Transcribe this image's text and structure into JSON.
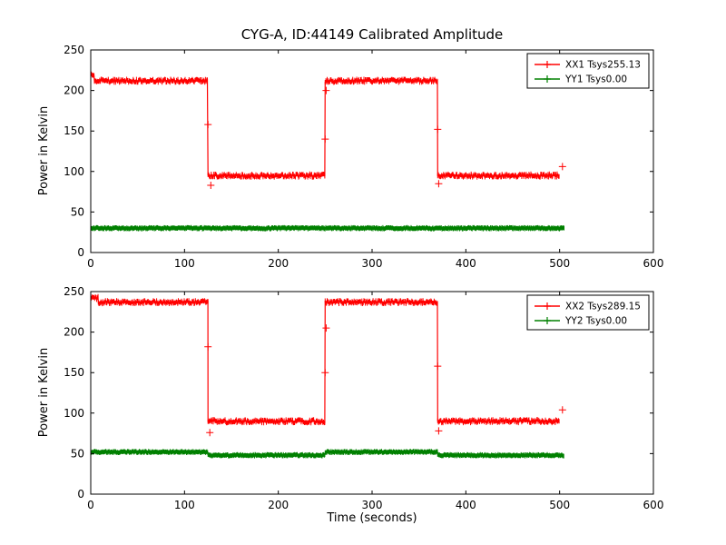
{
  "figure": {
    "title": "CYG-A, ID:44149 Calibrated Amplitude",
    "background": "#ffffff",
    "frame_color": "#000000"
  },
  "chart_data": [
    {
      "type": "line",
      "title": "CYG-A, ID:44149 Calibrated Amplitude",
      "xlabel": "",
      "ylabel": "Power in Kelvin",
      "xlim": [
        0,
        600
      ],
      "ylim": [
        0,
        250
      ],
      "xticks": [
        0,
        100,
        200,
        300,
        400,
        500,
        600
      ],
      "yticks": [
        0,
        50,
        100,
        150,
        200,
        250
      ],
      "grid": false,
      "legend_position": "upper right",
      "series": [
        {
          "name": "XX1 Tsys255.13",
          "color": "#ff0000",
          "marker": "+",
          "noise": 2.2,
          "segments": [
            [
              0,
              4,
              219
            ],
            [
              4,
              125,
              212
            ],
            [
              125,
              250,
              95
            ],
            [
              250,
              370,
              212
            ],
            [
              370,
              500,
              95
            ]
          ],
          "extra_markers": [
            [
              125,
              158
            ],
            [
              128,
              83
            ],
            [
              250,
              140
            ],
            [
              251,
              200
            ],
            [
              370,
              152
            ],
            [
              371,
              85
            ],
            [
              503,
              106
            ]
          ]
        },
        {
          "name": "YY1 Tsys0.00",
          "color": "#008000",
          "marker": "+",
          "noise": 1.0,
          "segments": [
            [
              0,
              505,
              30
            ]
          ],
          "extra_markers": []
        }
      ]
    },
    {
      "type": "line",
      "title": "",
      "xlabel": "Time (seconds)",
      "ylabel": "Power in Kelvin",
      "xlim": [
        0,
        600
      ],
      "ylim": [
        0,
        250
      ],
      "xticks": [
        0,
        100,
        200,
        300,
        400,
        500,
        600
      ],
      "yticks": [
        0,
        50,
        100,
        150,
        200,
        250
      ],
      "grid": false,
      "legend_position": "upper right",
      "series": [
        {
          "name": "XX2 Tsys289.15",
          "color": "#ff0000",
          "marker": "+",
          "noise": 2.2,
          "segments": [
            [
              0,
              8,
              242
            ],
            [
              8,
              125,
              237
            ],
            [
              125,
              250,
              90
            ],
            [
              250,
              370,
              237
            ],
            [
              370,
              500,
              90
            ]
          ],
          "extra_markers": [
            [
              125,
              182
            ],
            [
              127,
              76
            ],
            [
              250,
              150
            ],
            [
              251,
              205
            ],
            [
              370,
              158
            ],
            [
              371,
              78
            ],
            [
              503,
              104
            ]
          ]
        },
        {
          "name": "YY2 Tsys0.00",
          "color": "#008000",
          "marker": "+",
          "noise": 1.0,
          "segments": [
            [
              0,
              125,
              52
            ],
            [
              125,
              250,
              48
            ],
            [
              250,
              370,
              52
            ],
            [
              370,
              505,
              48
            ]
          ],
          "extra_markers": []
        }
      ]
    }
  ]
}
